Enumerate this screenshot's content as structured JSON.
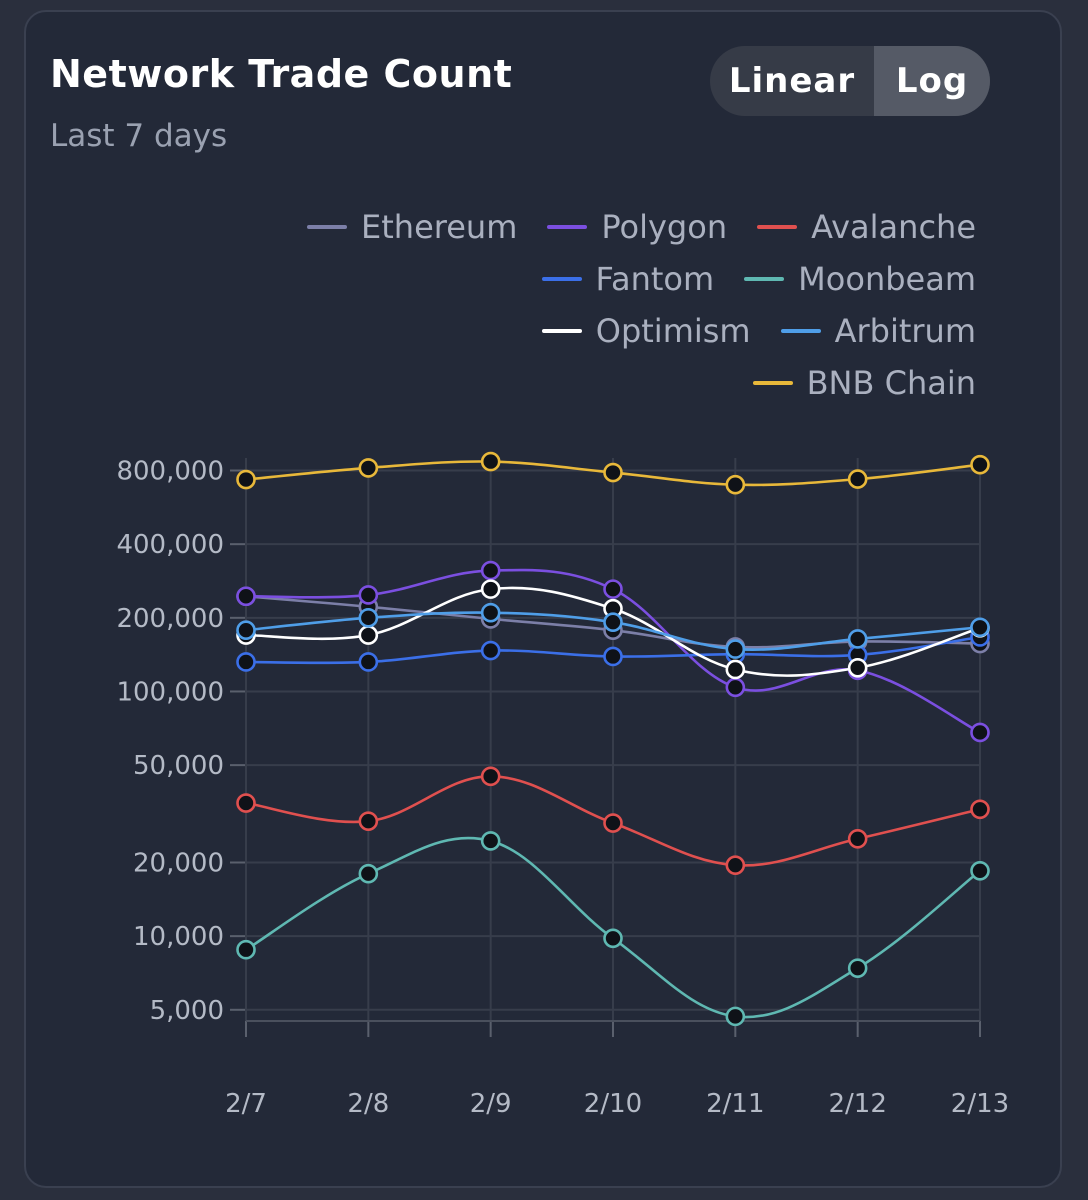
{
  "card": {
    "title": "Network Trade Count",
    "subtitle": "Last 7 days",
    "scale_toggle": {
      "linear_label": "Linear",
      "log_label": "Log",
      "selected": "Log"
    }
  },
  "chart_data": {
    "type": "line",
    "title": "Network Trade Count",
    "subtitle": "Last 7 days",
    "y_scale": "log",
    "ylim": [
      4500,
      900000
    ],
    "y_ticks": [
      5000,
      10000,
      20000,
      50000,
      100000,
      200000,
      400000,
      800000
    ],
    "y_tick_labels": [
      "5,000",
      "10,000",
      "20,000",
      "50,000",
      "100,000",
      "200,000",
      "400,000",
      "800,000"
    ],
    "categories": [
      "2/7",
      "2/8",
      "2/9",
      "2/10",
      "2/11",
      "2/12",
      "2/13"
    ],
    "grid": true,
    "legend_position": "top-right",
    "series": [
      {
        "name": "Ethereum",
        "color": "#7c7fa8",
        "values": [
          245000,
          222000,
          198000,
          178000,
          152000,
          160000,
          157000
        ]
      },
      {
        "name": "Polygon",
        "color": "#7b4fe0",
        "values": [
          245000,
          248000,
          312000,
          262000,
          104000,
          122000,
          68000
        ]
      },
      {
        "name": "Avalanche",
        "color": "#e0504f",
        "values": [
          35000,
          29500,
          45000,
          29000,
          19500,
          25000,
          33000
        ]
      },
      {
        "name": "Fantom",
        "color": "#3b6fe8",
        "values": [
          132000,
          132000,
          147000,
          139000,
          142000,
          141000,
          167000
        ]
      },
      {
        "name": "Moonbeam",
        "color": "#5fb8b2",
        "values": [
          8800,
          18000,
          24500,
          9800,
          4700,
          7400,
          18500
        ]
      },
      {
        "name": "Optimism",
        "color": "#ffffff",
        "values": [
          170000,
          170000,
          262000,
          218000,
          123000,
          125000,
          182000
        ]
      },
      {
        "name": "Arbitrum",
        "color": "#4f9ee8",
        "values": [
          178000,
          200000,
          210000,
          192000,
          149000,
          164000,
          183000
        ]
      },
      {
        "name": "BNB Chain",
        "color": "#e8b83a",
        "values": [
          735000,
          820000,
          870000,
          785000,
          700000,
          738000,
          845000
        ]
      }
    ]
  }
}
